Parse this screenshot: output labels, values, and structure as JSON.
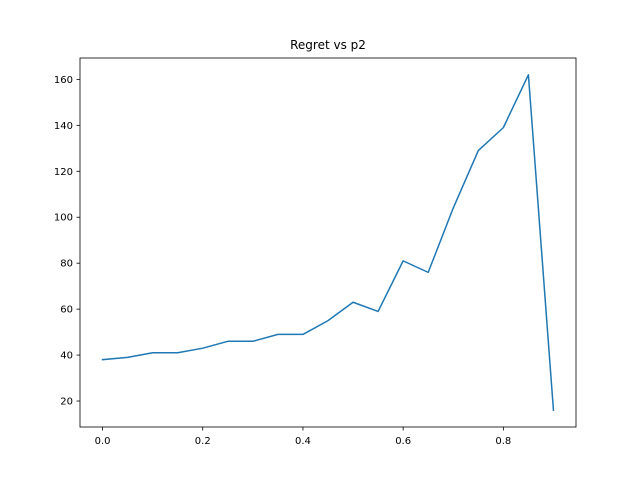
{
  "chart_data": {
    "type": "line",
    "title": "Regret vs p2",
    "xlabel": "",
    "ylabel": "",
    "x": [
      0.0,
      0.05,
      0.1,
      0.15,
      0.2,
      0.25,
      0.3,
      0.35,
      0.4,
      0.45,
      0.5,
      0.55,
      0.6,
      0.65,
      0.7,
      0.75,
      0.8,
      0.85,
      0.9
    ],
    "series": [
      {
        "values": [
          38,
          39,
          41,
          41,
          43,
          46,
          46,
          49,
          49,
          55,
          63,
          59,
          81,
          76,
          104,
          129,
          139,
          162,
          16
        ],
        "color": "#1f77b4"
      }
    ],
    "xlim": [
      -0.045,
      0.945
    ],
    "ylim": [
      8.7,
      169.3
    ],
    "xticks": [
      0.0,
      0.2,
      0.4,
      0.6,
      0.8
    ],
    "xtick_labels": [
      "0.0",
      "0.2",
      "0.4",
      "0.6",
      "0.8"
    ],
    "yticks": [
      20,
      40,
      60,
      80,
      100,
      120,
      140,
      160
    ],
    "ytick_labels": [
      "20",
      "40",
      "60",
      "80",
      "100",
      "120",
      "140",
      "160"
    ],
    "grid": false,
    "legend": "none"
  }
}
